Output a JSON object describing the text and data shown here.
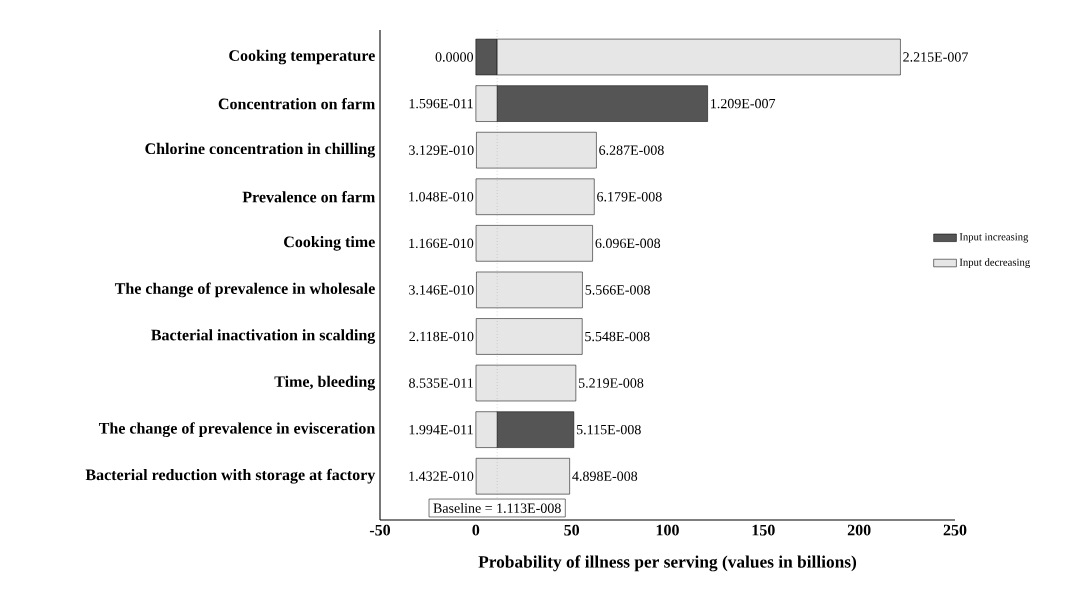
{
  "chart_data": {
    "type": "bar",
    "orientation": "horizontal",
    "xlabel": "Probability of illness per serving (values in billions)",
    "categories": [
      "Cooking temperature",
      "Concentration on farm",
      "Chlorine concentration in chilling",
      "Prevalence on farm",
      "Cooking time",
      "The change of prevalence in wholesale",
      "Bacterial inactivation in scalding",
      "Time, bleeding",
      "The change of prevalence in evisceration",
      "Bacterial reduction with storage at factory"
    ],
    "series": [
      {
        "name": "Input increasing",
        "color": "#555555",
        "base": [
          0,
          11.13,
          null,
          null,
          null,
          null,
          null,
          null,
          11.13,
          null
        ],
        "values": [
          11.1,
          109.8,
          null,
          null,
          null,
          null,
          null,
          null,
          40.0,
          null
        ]
      },
      {
        "name": "Input decreasing",
        "color": "#e6e6e6",
        "base": [
          11.13,
          0.01596,
          0.3129,
          0.1048,
          0.1166,
          0.3146,
          0.2118,
          0.08535,
          0.01994,
          0.1432
        ],
        "values": [
          210.4,
          11.1,
          62.6,
          61.7,
          60.8,
          55.3,
          55.3,
          52.1,
          11.1,
          48.8
        ]
      }
    ],
    "annotations": [
      {
        "text": "0.0000",
        "x": 0,
        "y": "Cooking temperature"
      },
      {
        "text": "2.215E-007",
        "x": 221.5,
        "y": "Cooking temperature"
      },
      {
        "text": "1.596E-011",
        "x": 0.01596,
        "y": "Concentration on farm"
      },
      {
        "text": "1.209E-007",
        "x": 120.9,
        "y": "Concentration on farm"
      },
      {
        "text": "3.129E-010",
        "x": 0.3129,
        "y": "Chlorine concentration in chilling"
      },
      {
        "text": "6.287E-008",
        "x": 62.87,
        "y": "Chlorine concentration in chilling"
      },
      {
        "text": "1.048E-010",
        "x": 0.1048,
        "y": "Prevalence on farm"
      },
      {
        "text": "6.179E-008",
        "x": 61.79,
        "y": "Prevalence on farm"
      },
      {
        "text": "1.166E-010",
        "x": 0.1166,
        "y": "Cooking time"
      },
      {
        "text": "6.096E-008",
        "x": 60.96,
        "y": "Cooking time"
      },
      {
        "text": "3.146E-010",
        "x": 0.3146,
        "y": "The change of prevalence in wholesale"
      },
      {
        "text": "5.566E-008",
        "x": 55.66,
        "y": "The change of prevalence in wholesale"
      },
      {
        "text": "2.118E-010",
        "x": 0.2118,
        "y": "Bacterial inactivation in scalding"
      },
      {
        "text": "5.548E-008",
        "x": 55.48,
        "y": "Bacterial inactivation in scalding"
      },
      {
        "text": "8.535E-011",
        "x": 0.08535,
        "y": "Time, bleeding"
      },
      {
        "text": "5.219E-008",
        "x": 52.19,
        "y": "Time, bleeding"
      },
      {
        "text": "1.994E-011",
        "x": 0.01994,
        "y": "The change of prevalence in evisceration"
      },
      {
        "text": "5.115E-008",
        "x": 51.15,
        "y": "The change of prevalence in evisceration"
      },
      {
        "text": "1.432E-010",
        "x": 0.1432,
        "y": "Bacterial reduction with storage at factory"
      },
      {
        "text": "4.898E-008",
        "x": 48.98,
        "y": "Bacterial reduction with storage at factory"
      },
      "Baseline = 1.113E-008"
    ],
    "ref_lines": [
      {
        "axis": "x",
        "value": 11.13,
        "line_style": "dotted"
      }
    ],
    "xlim": [
      -50,
      250
    ],
    "xticks": [
      -50,
      0,
      50,
      100,
      150,
      200,
      250
    ],
    "legend": "right",
    "grid": false
  }
}
